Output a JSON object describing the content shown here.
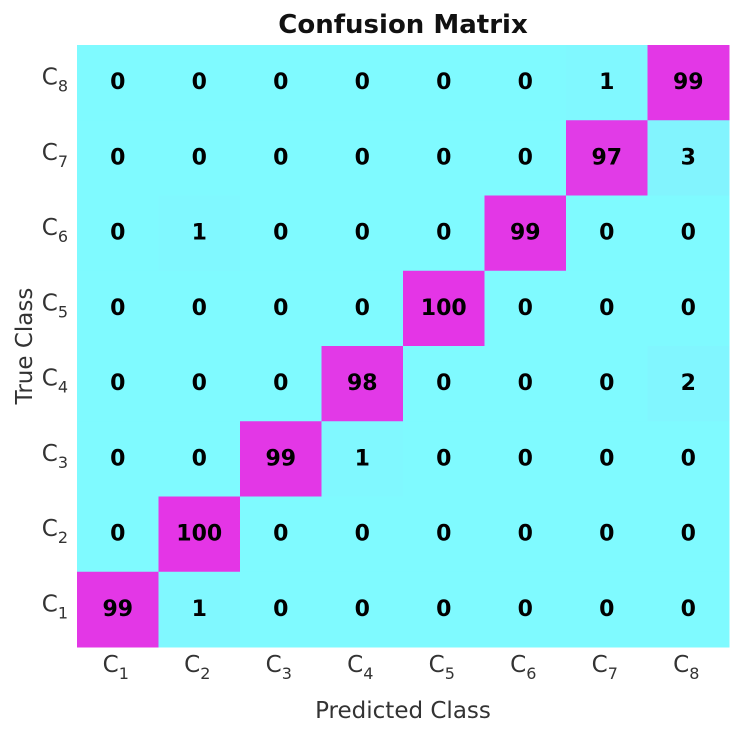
{
  "chart_data": {
    "type": "heatmap",
    "title": "Confusion Matrix",
    "xlabel": "Predicted Class",
    "ylabel": "True Class",
    "x_tick_labels": [
      {
        "base": "C",
        "sub": "1"
      },
      {
        "base": "C",
        "sub": "2"
      },
      {
        "base": "C",
        "sub": "3"
      },
      {
        "base": "C",
        "sub": "4"
      },
      {
        "base": "C",
        "sub": "5"
      },
      {
        "base": "C",
        "sub": "6"
      },
      {
        "base": "C",
        "sub": "7"
      },
      {
        "base": "C",
        "sub": "8"
      }
    ],
    "y_tick_labels_top_to_bottom": [
      {
        "base": "C",
        "sub": "8"
      },
      {
        "base": "C",
        "sub": "7"
      },
      {
        "base": "C",
        "sub": "6"
      },
      {
        "base": "C",
        "sub": "5"
      },
      {
        "base": "C",
        "sub": "4"
      },
      {
        "base": "C",
        "sub": "3"
      },
      {
        "base": "C",
        "sub": "2"
      },
      {
        "base": "C",
        "sub": "1"
      }
    ],
    "matrix_rows_top_to_bottom": [
      [
        0,
        0,
        0,
        0,
        0,
        0,
        1,
        99
      ],
      [
        0,
        0,
        0,
        0,
        0,
        0,
        97,
        3
      ],
      [
        0,
        1,
        0,
        0,
        0,
        99,
        0,
        0
      ],
      [
        0,
        0,
        0,
        0,
        100,
        0,
        0,
        0
      ],
      [
        0,
        0,
        0,
        98,
        0,
        0,
        0,
        2
      ],
      [
        0,
        0,
        99,
        1,
        0,
        0,
        0,
        0
      ],
      [
        0,
        100,
        0,
        0,
        0,
        0,
        0,
        0
      ],
      [
        99,
        1,
        0,
        0,
        0,
        0,
        0,
        0
      ]
    ],
    "value_range": [
      0,
      100
    ],
    "colormap": {
      "low": "#7ffaff",
      "high": "#e435e6"
    },
    "grid": false
  }
}
